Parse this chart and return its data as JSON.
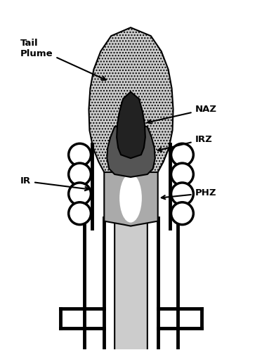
{
  "bg_color": "#ffffff",
  "dark_gray": "#222222",
  "medium_gray": "#555555",
  "light_gray": "#aaaaaa",
  "very_light_gray": "#cccccc",
  "coil_gray": "#888888",
  "labels": {
    "tail_plume": "Tail\nPlume",
    "naz": "NAZ",
    "irz": "IRZ",
    "ir": "IR",
    "phz": "PHZ"
  },
  "figsize": [
    3.73,
    4.98
  ],
  "dpi": 100
}
